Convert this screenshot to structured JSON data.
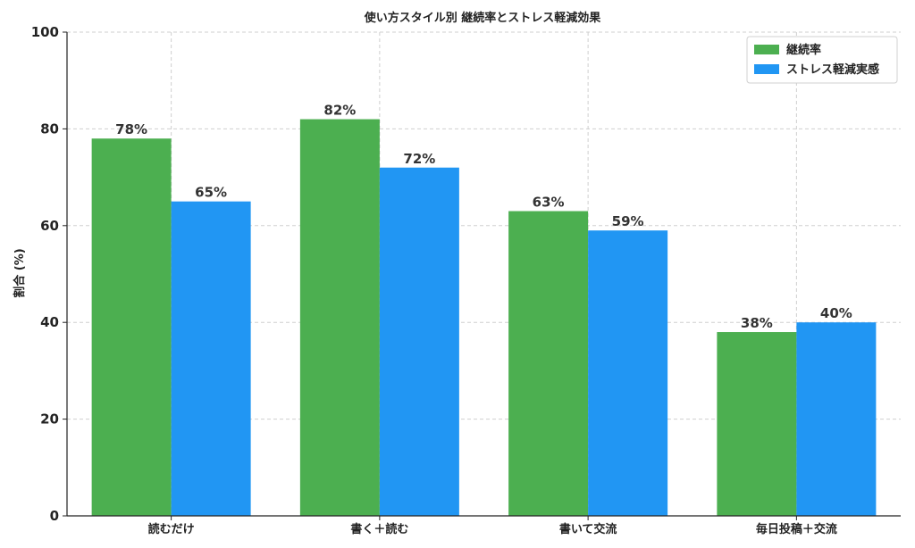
{
  "chart_data": {
    "type": "bar",
    "title": "使い方スタイル別 継続率とストレス軽減効果",
    "xlabel": "",
    "ylabel": "割合 (%)",
    "ylim": [
      0,
      100
    ],
    "yticks": [
      0,
      20,
      40,
      60,
      80,
      100
    ],
    "grid": true,
    "legend_position": "top-right",
    "categories": [
      "読むだけ",
      "書く＋読む",
      "書いて交流",
      "毎日投稿＋交流"
    ],
    "series": [
      {
        "name": "継続率",
        "color": "#4caf50",
        "values": [
          78,
          82,
          63,
          38
        ]
      },
      {
        "name": "ストレス軽減実感",
        "color": "#2196f3",
        "values": [
          65,
          72,
          59,
          40
        ]
      }
    ],
    "value_suffix": "%"
  }
}
